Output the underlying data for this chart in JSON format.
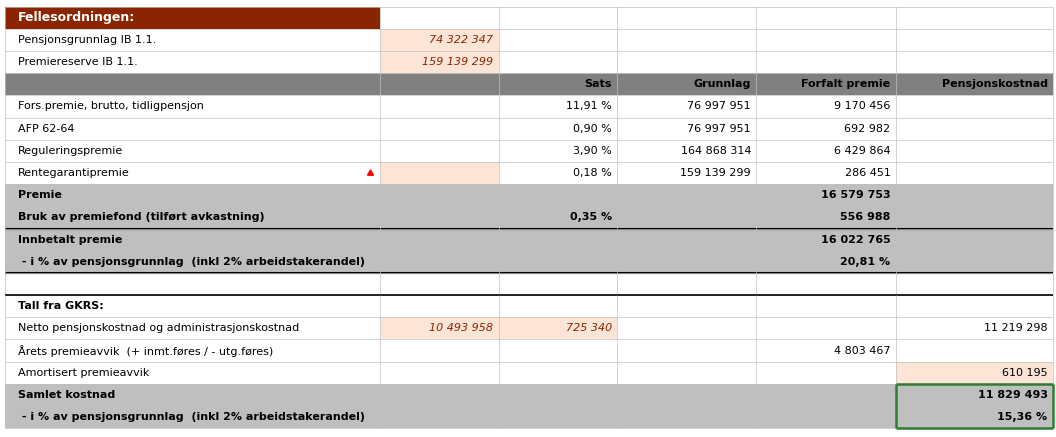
{
  "title": "Fellesordningen:",
  "title_bg": "#8B2500",
  "title_fg": "#FFFFFF",
  "header_bg": "#808080",
  "gray_bg": "#BFBFBF",
  "light_peach": "#FCE4D6",
  "italic_color": "#8B2500",
  "fig_bg": "#FFFFFF",
  "figsize": [
    10.56,
    4.37
  ],
  "dpi": 100,
  "col_props": [
    0.358,
    0.113,
    0.113,
    0.133,
    0.133,
    0.15
  ],
  "header_labels": [
    "",
    "",
    "Sats",
    "Grunnlag",
    "Forfalt premie",
    "Pensjonskostnad"
  ],
  "top_rows": [
    {
      "label": "Pensjonsgrunnlag IB 1.1.",
      "val": "74 322 347"
    },
    {
      "label": "Premiereserve IB 1.1.",
      "val": "159 139 299"
    }
  ],
  "rows": [
    {
      "label": "Fors.premie, brutto, tidligpensjon",
      "c0": "",
      "c1": "",
      "c2": "11,91 %",
      "c3": "76 997 951",
      "c4": "9 170 456",
      "c5": "",
      "bold": false,
      "section": "white",
      "c1_bg": "",
      "c2_bg": "",
      "c5_bg": "",
      "bottom_border": false,
      "top_border": false,
      "marker": false
    },
    {
      "label": "AFP 62-64",
      "c0": "",
      "c1": "",
      "c2": "0,90 %",
      "c3": "76 997 951",
      "c4": "692 982",
      "c5": "",
      "bold": false,
      "section": "white",
      "c1_bg": "",
      "c2_bg": "",
      "c5_bg": "",
      "bottom_border": false,
      "top_border": false,
      "marker": false
    },
    {
      "label": "Reguleringspremie",
      "c0": "",
      "c1": "",
      "c2": "3,90 %",
      "c3": "164 868 314",
      "c4": "6 429 864",
      "c5": "",
      "bold": false,
      "section": "white",
      "c1_bg": "",
      "c2_bg": "",
      "c5_bg": "",
      "bottom_border": false,
      "top_border": false,
      "marker": false
    },
    {
      "label": "Rentegarantipremie",
      "c0": "",
      "c1": "",
      "c2": "0,18 %",
      "c3": "159 139 299",
      "c4": "286 451",
      "c5": "",
      "bold": false,
      "section": "white",
      "c1_bg": "#FCE4D6",
      "c2_bg": "",
      "c5_bg": "",
      "bottom_border": false,
      "top_border": false,
      "marker": true
    },
    {
      "label": "Premie",
      "c0": "",
      "c1": "",
      "c2": "",
      "c3": "",
      "c4": "16 579 753",
      "c5": "",
      "bold": true,
      "section": "gray",
      "c1_bg": "",
      "c2_bg": "",
      "c5_bg": "",
      "bottom_border": false,
      "top_border": false,
      "marker": false
    },
    {
      "label": "Bruk av premiefond (tilført avkastning)",
      "c0": "",
      "c1": "",
      "c2": "0,35 %",
      "c3": "",
      "c4": "556 988",
      "c5": "",
      "bold": true,
      "section": "gray",
      "c1_bg": "",
      "c2_bg": "",
      "c5_bg": "",
      "bottom_border": true,
      "top_border": false,
      "marker": false
    },
    {
      "label": "Innbetalt premie",
      "c0": "",
      "c1": "",
      "c2": "",
      "c3": "",
      "c4": "16 022 765",
      "c5": "",
      "bold": true,
      "section": "gray",
      "c1_bg": "",
      "c2_bg": "",
      "c5_bg": "",
      "bottom_border": false,
      "top_border": false,
      "marker": false
    },
    {
      "label": " - i % av pensjonsgrunnlag  (inkl 2% arbeidstakerandel)",
      "c0": "",
      "c1": "",
      "c2": "",
      "c3": "",
      "c4": "20,81 %",
      "c5": "",
      "bold": true,
      "section": "gray",
      "c1_bg": "",
      "c2_bg": "",
      "c5_bg": "",
      "bottom_border": true,
      "top_border": false,
      "marker": false
    },
    {
      "label": "",
      "c0": "",
      "c1": "",
      "c2": "",
      "c3": "",
      "c4": "",
      "c5": "",
      "bold": false,
      "section": "white",
      "c1_bg": "",
      "c2_bg": "",
      "c5_bg": "",
      "bottom_border": false,
      "top_border": false,
      "marker": false
    },
    {
      "label": "Tall fra GKRS:",
      "c0": "",
      "c1": "",
      "c2": "",
      "c3": "",
      "c4": "",
      "c5": "",
      "bold": true,
      "section": "white",
      "c1_bg": "",
      "c2_bg": "",
      "c5_bg": "",
      "bottom_border": false,
      "top_border": true,
      "marker": false
    },
    {
      "label": "Netto pensjonskostnad og administrasjonskostnad",
      "c0": "",
      "c1": "10 493 958",
      "c2": "725 340",
      "c3": "",
      "c4": "",
      "c5": "11 219 298",
      "bold": false,
      "section": "white",
      "c1_bg": "#FCE4D6",
      "c2_bg": "#FCE4D6",
      "c5_bg": "",
      "c1_italic": true,
      "c2_italic": true,
      "bottom_border": false,
      "top_border": false,
      "marker": false
    },
    {
      "label": "Årets premieavvik  (+ inmt.føres / - utg.føres)",
      "c0": "",
      "c1": "",
      "c2": "",
      "c3": "",
      "c4": "4 803 467",
      "c5": "",
      "bold": false,
      "section": "white",
      "c1_bg": "",
      "c2_bg": "",
      "c5_bg": "",
      "bottom_border": false,
      "top_border": false,
      "marker": false
    },
    {
      "label": "Amortisert premieavvik",
      "c0": "",
      "c1": "",
      "c2": "",
      "c3": "",
      "c4": "",
      "c5": "610 195",
      "bold": false,
      "section": "white",
      "c1_bg": "",
      "c2_bg": "",
      "c5_bg": "#FCE4D6",
      "bottom_border": false,
      "top_border": false,
      "marker": false
    },
    {
      "label": "Samlet kostnad",
      "c0": "",
      "c1": "",
      "c2": "",
      "c3": "",
      "c4": "",
      "c5": "11 829 493",
      "bold": true,
      "section": "gray",
      "c1_bg": "",
      "c2_bg": "",
      "c5_bg": "",
      "bottom_border": false,
      "top_border": false,
      "marker": false,
      "c5_green_border": true
    },
    {
      "label": " - i % av pensjonsgrunnlag  (inkl 2% arbeidstakerandel)",
      "c0": "",
      "c1": "",
      "c2": "",
      "c3": "",
      "c4": "",
      "c5": "15,36 %",
      "bold": true,
      "section": "gray",
      "c1_bg": "",
      "c2_bg": "",
      "c5_bg": "",
      "bottom_border": false,
      "top_border": false,
      "marker": false,
      "c5_green_border": true
    }
  ]
}
